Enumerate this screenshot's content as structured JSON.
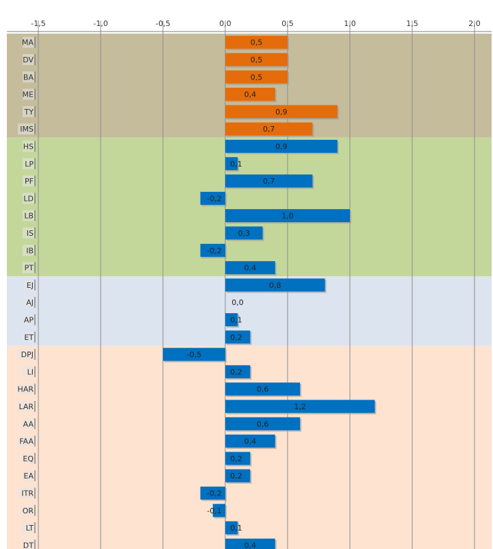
{
  "chart_data": {
    "type": "bar",
    "orientation": "horizontal",
    "title": "",
    "xlabel": "",
    "ylabel": "",
    "xlim": [
      -1.5,
      2.0
    ],
    "x_axis_position": "top",
    "x_ticks": [
      "-1,5",
      "-1,0",
      "-0,5",
      "0,0",
      "0,5",
      "1,0",
      "1,5",
      "2,0"
    ],
    "grid": "vertical",
    "legend": "none",
    "categories": [
      "MA",
      "DV",
      "BA",
      "ME",
      "TY",
      "IMS",
      "HS",
      "LP",
      "PF",
      "LD",
      "LB",
      "IS",
      "IB",
      "PT",
      "EJ",
      "AJ",
      "AP",
      "ET",
      "DPJ",
      "LI",
      "HAR",
      "LAR",
      "AA",
      "FAA",
      "EQ",
      "EA",
      "ITR",
      "OR",
      "LT",
      "DT"
    ],
    "values": [
      0.5,
      0.5,
      0.5,
      0.4,
      0.9,
      0.7,
      0.9,
      0.1,
      0.7,
      -0.2,
      1.0,
      0.3,
      -0.2,
      0.4,
      0.8,
      0.0,
      0.1,
      0.2,
      -0.5,
      0.2,
      0.6,
      1.2,
      0.6,
      0.4,
      0.2,
      0.2,
      -0.2,
      -0.1,
      0.1,
      0.4
    ],
    "value_labels": [
      "0,5",
      "0,5",
      "0,5",
      "0,4",
      "0,9",
      "0,7",
      "0,9",
      "0,1",
      "0,7",
      "-0,2",
      "1,0",
      "0,3",
      "-0,2",
      "0,4",
      "0,8",
      "0,0",
      "0,1",
      "0,2",
      "-0,5",
      "0,2",
      "0,6",
      "1,2",
      "0,6",
      "0,4",
      "0,2",
      "0,2",
      "-0,2",
      "-0,1",
      "0,1",
      "0,4"
    ],
    "groups": [
      {
        "start": 0,
        "end": 5,
        "band_color": "#c5bc9c",
        "bar_color": "#e46c0a"
      },
      {
        "start": 6,
        "end": 13,
        "band_color": "#c4d79b",
        "bar_color": "#0070c0"
      },
      {
        "start": 14,
        "end": 17,
        "band_color": "#dce4ef",
        "bar_color": "#0070c0"
      },
      {
        "start": 18,
        "end": 29,
        "band_color": "#fde3d0",
        "bar_color": "#0070c0"
      }
    ],
    "colors": {
      "gridline": "#8c8c8c",
      "axis": "#7f7f7f",
      "bar_shadow": "#9a9a9a",
      "label_box": "#e6e6e6"
    }
  }
}
